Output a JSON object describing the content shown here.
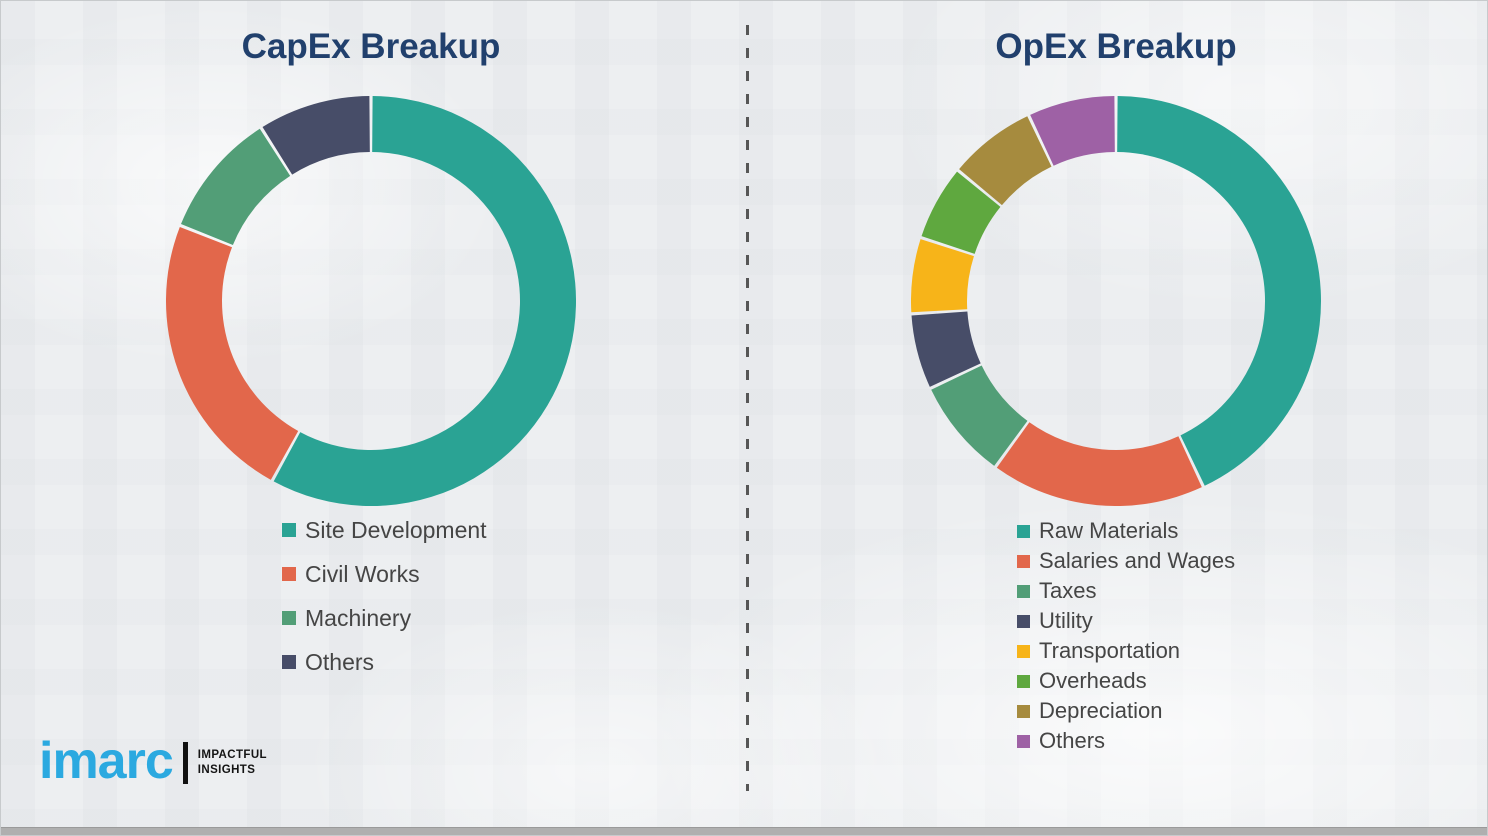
{
  "page": {
    "background_color": "#EDEFF1",
    "divider_style": "vertical-dashed",
    "divider_color": "#565656"
  },
  "chart_data": [
    {
      "type": "pie",
      "variant": "donut",
      "title": "CapEx Breakup",
      "categories": [
        "Site Development",
        "Civil Works",
        "Machinery",
        "Others"
      ],
      "values": [
        58,
        23,
        10,
        9
      ],
      "values_note": "percent, estimated from arc angles (no data labels shown)",
      "colors": [
        "#2AA394",
        "#E2674B",
        "#529E77",
        "#474D68"
      ],
      "start_angle_deg": 0,
      "direction": "clockwise",
      "legend_position": "below-left",
      "grid": false
    },
    {
      "type": "pie",
      "variant": "donut",
      "title": "OpEx Breakup",
      "categories": [
        "Raw Materials",
        "Salaries and Wages",
        "Taxes",
        "Utility",
        "Transportation",
        "Overheads",
        "Depreciation",
        "Others"
      ],
      "values": [
        43,
        17,
        8,
        6,
        6,
        6,
        7,
        7
      ],
      "values_note": "percent, estimated from arc angles (no data labels shown)",
      "colors": [
        "#2AA394",
        "#E2674B",
        "#529E77",
        "#474D68",
        "#F7B419",
        "#5FA83F",
        "#A68B3E",
        "#9E61A5"
      ],
      "start_angle_deg": 0,
      "direction": "clockwise",
      "legend_position": "below-left",
      "grid": false
    }
  ],
  "logo": {
    "text": "imarc",
    "tagline_line1": "IMPACTFUL",
    "tagline_line2": "INSIGHTS",
    "brand_color": "#2BA9E0"
  }
}
